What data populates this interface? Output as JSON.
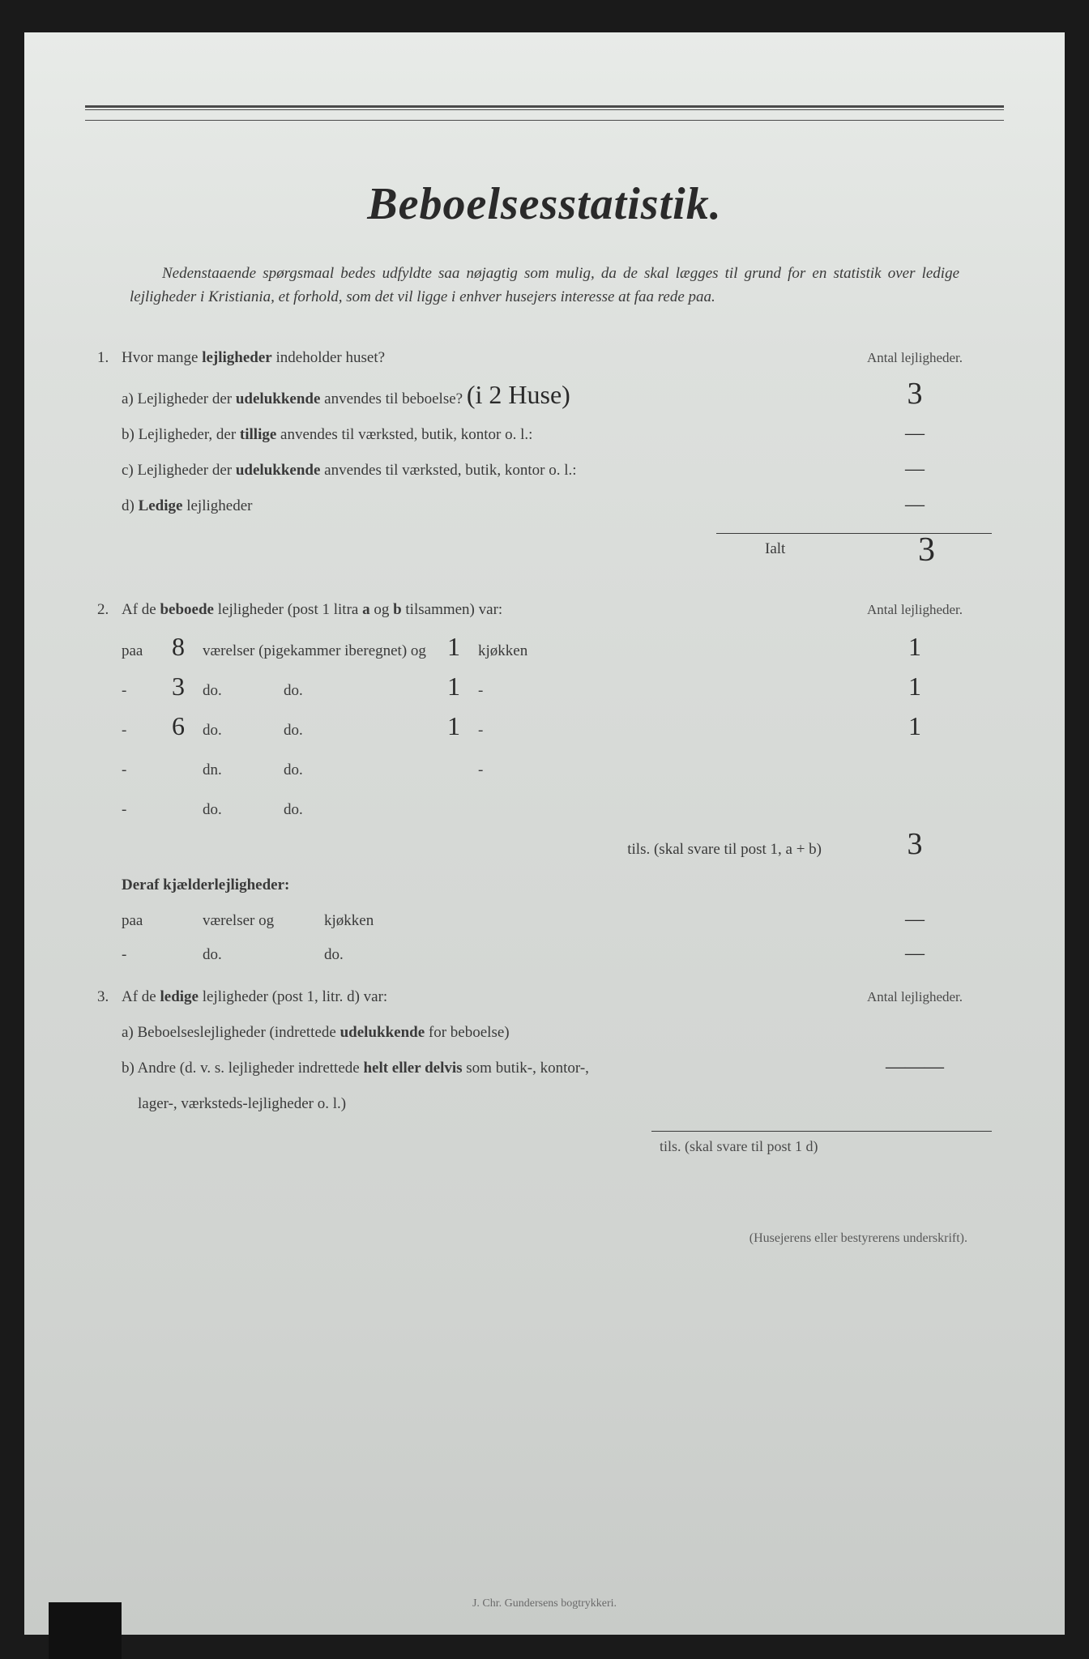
{
  "title": "Beboelsesstatistik.",
  "intro_line1": "Nedenstaaende spørgsmaal bedes udfyldte saa nøjagtig som mulig, da de",
  "intro_rest": "skal lægges til grund for en statistik over ledige lejligheder i Kristiania, et forhold, som det vil ligge i enhver husejers interesse at faa rede paa.",
  "col_header": "Antal lejligheder.",
  "q1": {
    "num": "1.",
    "text_a": "Hvor mange ",
    "text_b": "lejligheder",
    "text_c": " indeholder huset?",
    "a_pre": "a) Lejligheder der ",
    "a_bold": "udelukkende",
    "a_post": " anvendes til beboelse?",
    "a_hand": "(i 2 Huse)",
    "a_val": "3",
    "b_pre": "b) Lejligheder, der ",
    "b_bold": "tillige",
    "b_post": " anvendes til værksted, butik, kontor o. l.:",
    "b_val": "—",
    "c_pre": "c) Lejligheder der ",
    "c_bold": "udelukkende",
    "c_post": " anvendes til værksted, butik, kontor o. l.:",
    "c_val": "—",
    "d_pre": "d) ",
    "d_bold": "Ledige",
    "d_post": " lejligheder",
    "d_val": "—",
    "ialt_label": "Ialt",
    "ialt_val": "3"
  },
  "q2": {
    "num": "2.",
    "text_a": "Af de ",
    "text_b": "beboede",
    "text_c": " lejligheder (post 1 litra ",
    "text_d": "a",
    "text_e": " og ",
    "text_f": "b",
    "text_g": " tilsammen) var:",
    "rows": [
      {
        "pre": "paa",
        "rooms": "8",
        "mid1": "værelser (pigekammer iberegnet) og",
        "kj": "1",
        "mid2": "kjøkken",
        "cnt": "1"
      },
      {
        "pre": "-",
        "rooms": "3",
        "mid1": "do.",
        "mid1b": "do.",
        "dash": "-",
        "kj": "1",
        "mid2": "-",
        "cnt": "1"
      },
      {
        "pre": "-",
        "rooms": "6",
        "mid1": "do.",
        "mid1b": "do.",
        "dash": "-",
        "kj": "1",
        "mid2": "-",
        "cnt": "1"
      },
      {
        "pre": "-",
        "rooms": "",
        "mid1": "dn.",
        "mid1b": "do.",
        "dash": "-",
        "kj": "",
        "mid2": "-",
        "cnt": ""
      },
      {
        "pre": "-",
        "rooms": "",
        "mid1": "do.",
        "mid1b": "do.",
        "dash": "-",
        "kj": "",
        "mid2": "",
        "cnt": ""
      }
    ],
    "tils_label": "tils. (skal svare til post 1, a + b)",
    "tils_val": "3",
    "deraf": "Deraf kjælderlejligheder:",
    "basement": [
      {
        "pre": "paa",
        "rooms": "",
        "mid": "værelser og",
        "kj": "kjøkken",
        "cnt": "—"
      },
      {
        "pre": "-",
        "rooms": "",
        "mid": "do.",
        "dash": "-",
        "kj": "do.",
        "cnt": "—"
      }
    ]
  },
  "q3": {
    "num": "3.",
    "text_a": "Af de ",
    "text_b": "ledige",
    "text_c": " lejligheder (post 1, litr. d) var:",
    "a": "a) Beboelseslejligheder (indrettede ",
    "a_bold": "udelukkende",
    "a_post": " for beboelse)",
    "b": "b) Andre (d. v. s. lejligheder indrettede ",
    "b_bold": "helt eller delvis",
    "b_post": " som butik-, kontor-,",
    "b_line2": "lager-, værksteds-lejligheder o. l.)",
    "b_val": "———",
    "tils": "tils. (skal svare til post 1 d)"
  },
  "signature_label": "(Husejerens eller bestyrerens underskrift).",
  "printer": "J. Chr. Gundersens bogtrykkeri."
}
